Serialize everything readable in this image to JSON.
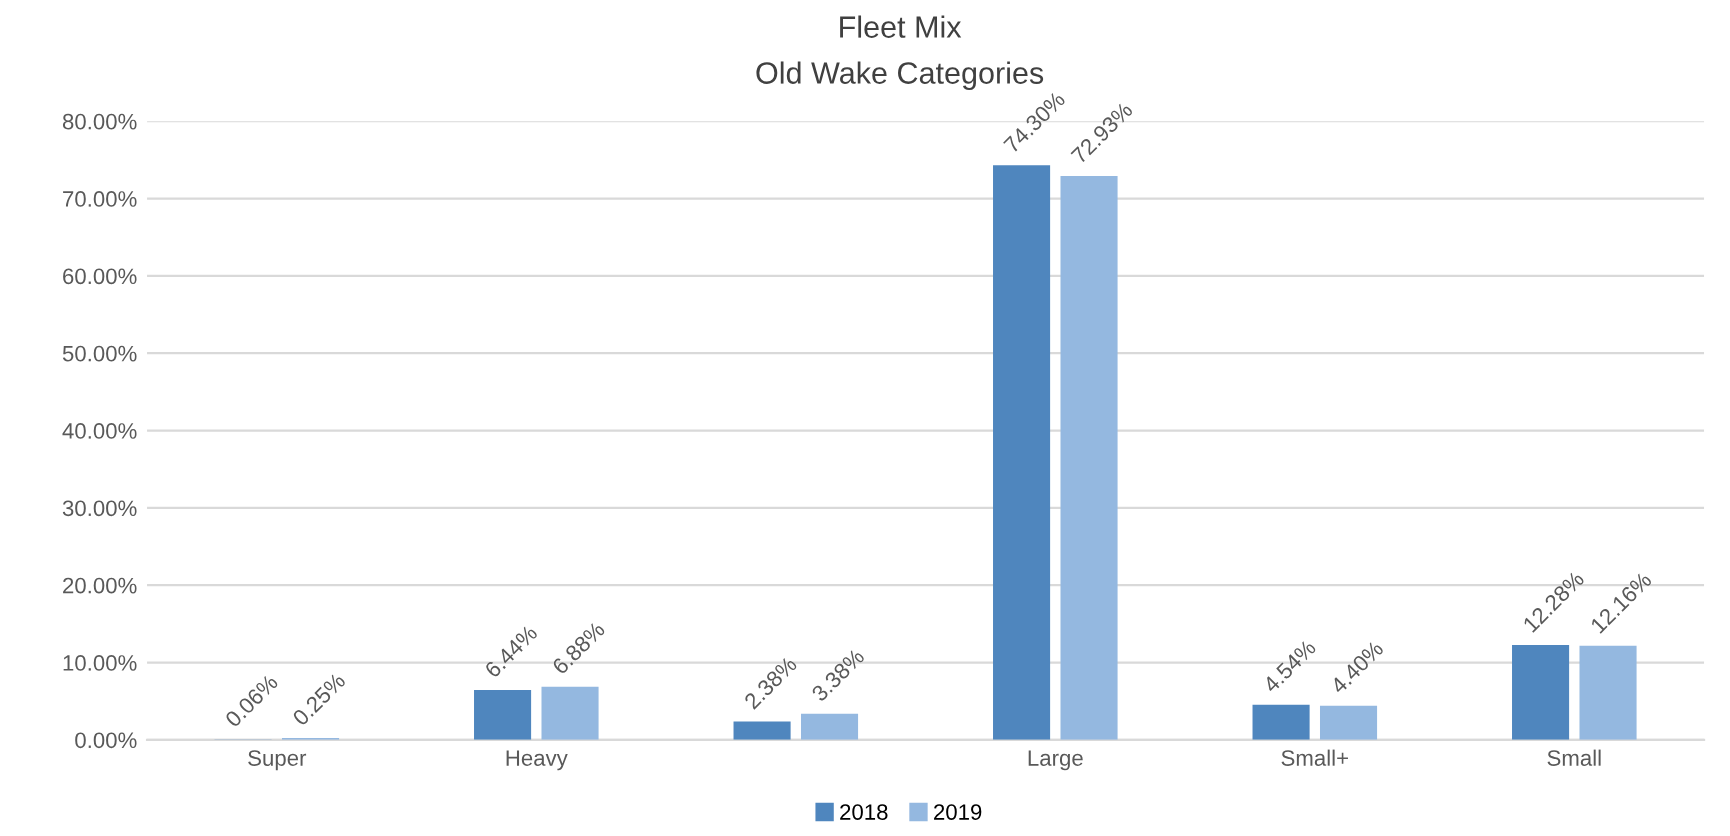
{
  "chart_data": {
    "type": "bar",
    "title": "Fleet Mix",
    "subtitle": "Old Wake Categories",
    "categories": [
      "Super",
      "Heavy",
      null,
      "Large",
      "Small+",
      "Small"
    ],
    "series": [
      {
        "name": "2018",
        "color": "#4f86be",
        "values": [
          0.06,
          6.44,
          2.38,
          74.3,
          4.54,
          12.28
        ],
        "value_labels": [
          "0.06%",
          "6.44%",
          "2.38%",
          "74.30%",
          "4.54%",
          "12.28%"
        ]
      },
      {
        "name": "2019",
        "color": "#94b8e0",
        "values": [
          0.25,
          6.88,
          3.38,
          72.93,
          4.4,
          12.16
        ],
        "value_labels": [
          "0.25%",
          "6.88%",
          "3.38%",
          "72.93%",
          "4.40%",
          "12.16%"
        ]
      }
    ],
    "ylim": [
      0,
      80
    ],
    "yticks": [
      {
        "value": 0,
        "label": "0.00%"
      },
      {
        "value": 10,
        "label": "10.00%"
      },
      {
        "value": 20,
        "label": "20.00%"
      },
      {
        "value": 30,
        "label": "30.00%"
      },
      {
        "value": 40,
        "label": "40.00%"
      },
      {
        "value": 50,
        "label": "50.00%"
      },
      {
        "value": 60,
        "label": "60.00%"
      },
      {
        "value": 70,
        "label": "70.00%"
      },
      {
        "value": 80,
        "label": "80.00%"
      }
    ],
    "grid": "y",
    "legend": "bottom"
  }
}
